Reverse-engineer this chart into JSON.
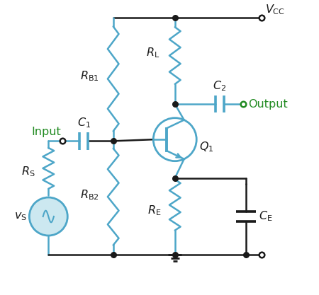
{
  "blue": "#4da6c8",
  "black": "#1a1a1a",
  "green": "#228B22",
  "bg": "#ffffff",
  "lw_main": 1.8,
  "lw_thick": 2.4,
  "resistor_amp": 0.15,
  "resistor_n": 7
}
